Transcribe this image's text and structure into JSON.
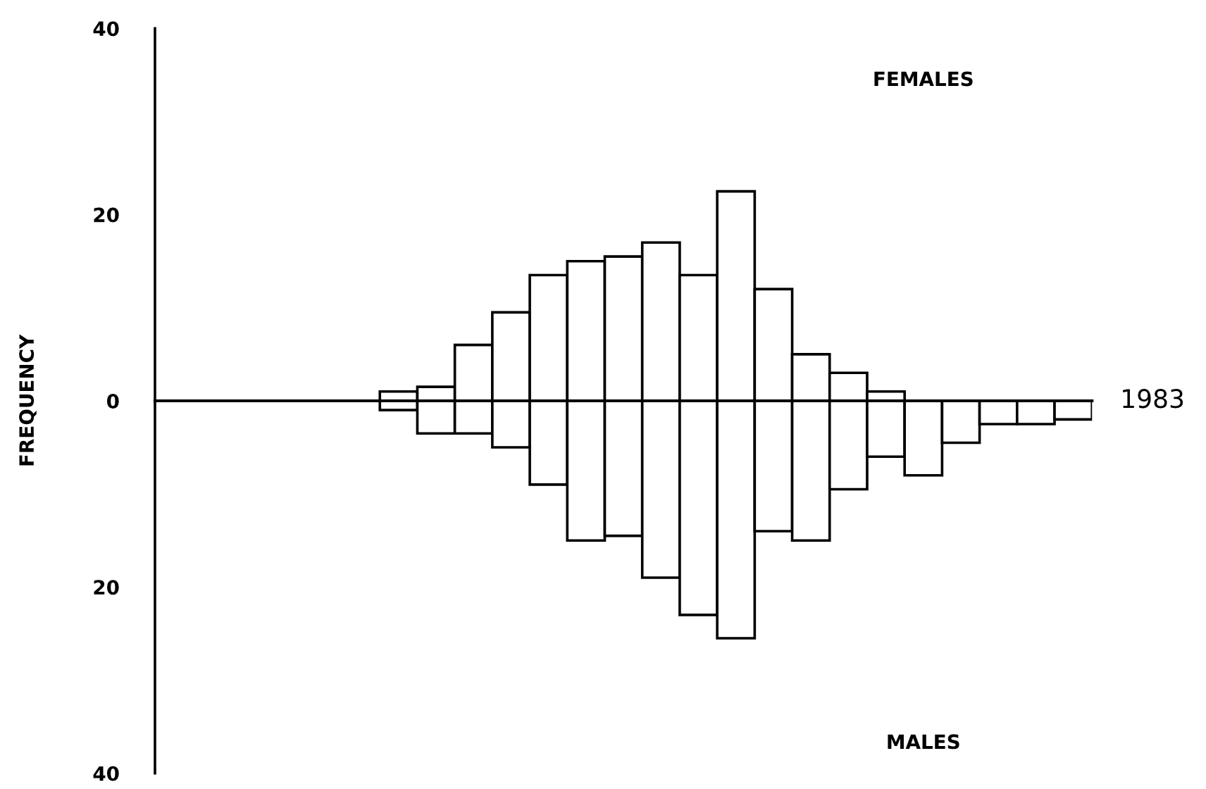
{
  "chart_data": {
    "type": "bar",
    "ylabel": "FREQUENCY",
    "stacked": true,
    "categories": [
      null,
      null,
      null,
      null,
      null,
      null,
      null,
      null,
      null,
      null,
      null,
      null,
      null,
      null,
      null,
      null,
      null,
      null,
      null,
      null,
      null,
      null,
      null,
      null,
      null
    ],
    "series": [
      {
        "color": "#ffffff",
        "values": [
          null,
          null,
          null,
          null,
          null,
          null,
          1,
          1.5,
          6,
          9.5,
          13.5,
          15,
          15.5,
          17,
          13.5,
          22.5,
          12,
          5,
          3,
          1,
          null,
          null,
          null,
          null,
          null
        ]
      },
      {
        "color": "#ffffff",
        "values": [
          null,
          null,
          null,
          null,
          null,
          null,
          -1,
          -3.5,
          -3.5,
          -5,
          -9,
          -15,
          -14.5,
          -19,
          -23,
          -25.5,
          -14,
          -15,
          -9.5,
          -6,
          -8,
          -4.5,
          -2.5,
          -2.5,
          -2
        ]
      }
    ],
    "ylim": [
      -40,
      40
    ],
    "yticks": [
      {
        "value": -40,
        "label": "40"
      },
      {
        "value": -20,
        "label": "20"
      },
      0,
      20,
      40
    ],
    "annotations": [
      "FEMALES",
      "1983",
      "MALES"
    ],
    "tick_labels": "y",
    "legend": false
  }
}
